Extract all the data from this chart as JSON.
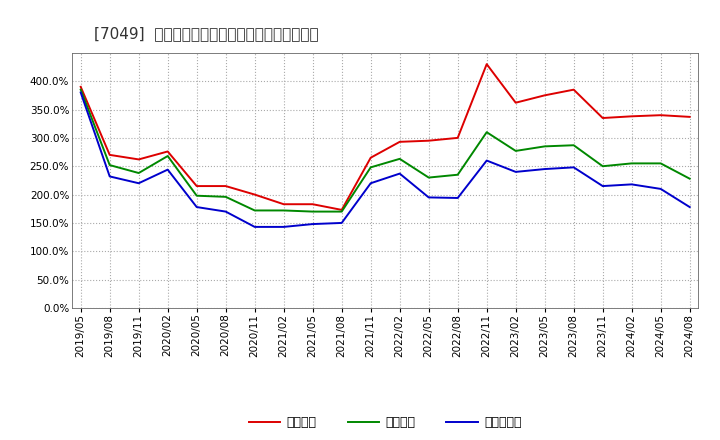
{
  "title": "[7049]  流動比率、当座比率、現頲金比率の推移",
  "dates": [
    "2019/05",
    "2019/08",
    "2019/11",
    "2020/02",
    "2020/05",
    "2020/08",
    "2020/11",
    "2021/02",
    "2021/05",
    "2021/08",
    "2021/11",
    "2022/02",
    "2022/05",
    "2022/08",
    "2022/11",
    "2023/02",
    "2023/05",
    "2023/08",
    "2023/11",
    "2024/02",
    "2024/05",
    "2024/08"
  ],
  "ryudo": [
    390,
    270,
    262,
    276,
    215,
    215,
    200,
    183,
    183,
    173,
    265,
    293,
    295,
    300,
    430,
    362,
    375,
    385,
    335,
    338,
    340,
    337
  ],
  "toza": [
    385,
    252,
    238,
    268,
    198,
    196,
    172,
    172,
    170,
    170,
    248,
    263,
    230,
    235,
    310,
    277,
    285,
    287,
    250,
    255,
    255,
    228
  ],
  "genyo": [
    380,
    232,
    220,
    244,
    178,
    170,
    143,
    143,
    148,
    150,
    220,
    237,
    195,
    194,
    260,
    240,
    245,
    248,
    215,
    218,
    210,
    178
  ],
  "ryudo_color": "#dd0000",
  "toza_color": "#008800",
  "genyo_color": "#0000cc",
  "legend_labels": [
    "流動比率",
    "当座比率",
    "現頲金比率"
  ],
  "ylim": [
    0,
    450
  ],
  "yticks": [
    0,
    50,
    100,
    150,
    200,
    250,
    300,
    350,
    400
  ],
  "bg_color": "#ffffff",
  "plot_bg_color": "#ffffff",
  "grid_color": "#aaaaaa",
  "title_fontsize": 11,
  "tick_fontsize": 7.5,
  "legend_fontsize": 9
}
